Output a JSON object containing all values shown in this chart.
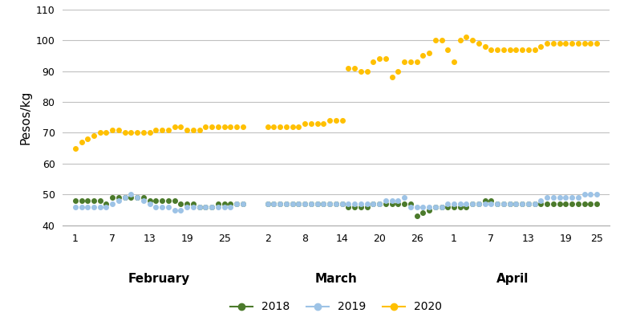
{
  "ylabel": "Pesos/kg",
  "ylim": [
    40,
    110
  ],
  "yticks": [
    40,
    50,
    60,
    70,
    80,
    90,
    100,
    110
  ],
  "background_color": "#ffffff",
  "grid_color": "#c0c0c0",
  "series": {
    "2018": {
      "color": "#4b7a2b",
      "x": [
        1,
        2,
        3,
        4,
        5,
        6,
        7,
        8,
        9,
        10,
        11,
        12,
        13,
        14,
        15,
        16,
        17,
        18,
        19,
        20,
        21,
        22,
        23,
        24,
        25,
        26,
        27,
        28,
        32,
        33,
        34,
        35,
        36,
        37,
        38,
        39,
        40,
        41,
        42,
        43,
        44,
        45,
        46,
        47,
        48,
        49,
        50,
        51,
        52,
        53,
        54,
        55,
        56,
        57,
        58,
        59,
        60,
        61,
        62,
        63,
        64,
        65,
        66,
        67,
        68,
        69,
        70,
        71,
        72,
        73,
        74,
        75,
        76,
        77,
        78,
        79,
        80,
        81,
        82,
        83,
        84,
        85
      ],
      "y": [
        48,
        48,
        48,
        48,
        48,
        47,
        49,
        49,
        49,
        49,
        49,
        49,
        48,
        48,
        48,
        48,
        48,
        47,
        47,
        47,
        46,
        46,
        46,
        47,
        47,
        47,
        47,
        47,
        47,
        47,
        47,
        47,
        47,
        47,
        47,
        47,
        47,
        47,
        47,
        47,
        47,
        46,
        46,
        46,
        46,
        47,
        47,
        47,
        47,
        47,
        47,
        47,
        43,
        44,
        45,
        46,
        46,
        46,
        46,
        46,
        46,
        47,
        47,
        48,
        48,
        47,
        47,
        47,
        47,
        47,
        47,
        47,
        47,
        47,
        47,
        47,
        47,
        47,
        47,
        47,
        47,
        47
      ]
    },
    "2019": {
      "color": "#9dc3e6",
      "x": [
        1,
        2,
        3,
        4,
        5,
        6,
        7,
        8,
        9,
        10,
        11,
        12,
        13,
        14,
        15,
        16,
        17,
        18,
        19,
        20,
        21,
        22,
        23,
        24,
        25,
        26,
        27,
        28,
        32,
        33,
        34,
        35,
        36,
        37,
        38,
        39,
        40,
        41,
        42,
        43,
        44,
        45,
        46,
        47,
        48,
        49,
        50,
        51,
        52,
        53,
        54,
        55,
        56,
        57,
        58,
        59,
        60,
        61,
        62,
        63,
        64,
        65,
        66,
        67,
        68,
        69,
        70,
        71,
        72,
        73,
        74,
        75,
        76,
        77,
        78,
        79,
        80,
        81,
        82,
        83,
        84,
        85
      ],
      "y": [
        46,
        46,
        46,
        46,
        46,
        46,
        47,
        48,
        49,
        50,
        49,
        48,
        47,
        46,
        46,
        46,
        45,
        45,
        46,
        46,
        46,
        46,
        46,
        46,
        46,
        46,
        47,
        47,
        47,
        47,
        47,
        47,
        47,
        47,
        47,
        47,
        47,
        47,
        47,
        47,
        47,
        47,
        47,
        47,
        47,
        47,
        47,
        48,
        48,
        48,
        49,
        46,
        46,
        46,
        46,
        46,
        46,
        47,
        47,
        47,
        47,
        47,
        47,
        47,
        47,
        47,
        47,
        47,
        47,
        47,
        47,
        47,
        48,
        49,
        49,
        49,
        49,
        49,
        49,
        50,
        50,
        50
      ]
    },
    "2020": {
      "color": "#ffc000",
      "x": [
        1,
        2,
        3,
        4,
        5,
        6,
        7,
        8,
        9,
        10,
        11,
        12,
        13,
        14,
        15,
        16,
        17,
        18,
        19,
        20,
        21,
        22,
        23,
        24,
        25,
        26,
        27,
        28,
        32,
        33,
        34,
        35,
        36,
        37,
        38,
        39,
        40,
        41,
        42,
        43,
        44,
        45,
        46,
        47,
        48,
        49,
        50,
        51,
        52,
        53,
        54,
        55,
        56,
        57,
        58,
        59,
        60,
        61,
        62,
        63,
        64,
        65,
        66,
        67,
        68,
        69,
        70,
        71,
        72,
        73,
        74,
        75,
        76,
        77,
        78,
        79,
        80,
        81,
        82,
        83,
        84,
        85
      ],
      "y": [
        65,
        67,
        68,
        69,
        70,
        70,
        71,
        71,
        70,
        70,
        70,
        70,
        70,
        71,
        71,
        71,
        72,
        72,
        71,
        71,
        71,
        72,
        72,
        72,
        72,
        72,
        72,
        72,
        72,
        72,
        72,
        72,
        72,
        72,
        73,
        73,
        73,
        73,
        74,
        74,
        74,
        91,
        91,
        90,
        90,
        93,
        94,
        94,
        88,
        90,
        93,
        93,
        93,
        95,
        96,
        100,
        100,
        97,
        93,
        100,
        101,
        100,
        99,
        98,
        97,
        97,
        97,
        97,
        97,
        97,
        97,
        97,
        98,
        99,
        99,
        99,
        99,
        99,
        99,
        99,
        99,
        99
      ]
    }
  },
  "month_labels": [
    {
      "text": "February",
      "x": 14.5
    },
    {
      "text": "March",
      "x": 43.0
    },
    {
      "text": "April",
      "x": 71.5
    }
  ],
  "day_ticks": [
    1,
    7,
    13,
    19,
    25,
    32,
    38,
    44,
    50,
    56,
    62,
    68,
    74,
    80,
    85
  ],
  "day_tick_labels": [
    "1",
    "7",
    "13",
    "19",
    "25",
    "2",
    "8",
    "14",
    "20",
    "26",
    "1",
    "7",
    "13",
    "19",
    "25"
  ],
  "legend_labels": [
    "2018",
    "2019",
    "2020"
  ],
  "legend_colors": [
    "#4b7a2b",
    "#9dc3e6",
    "#ffc000"
  ]
}
